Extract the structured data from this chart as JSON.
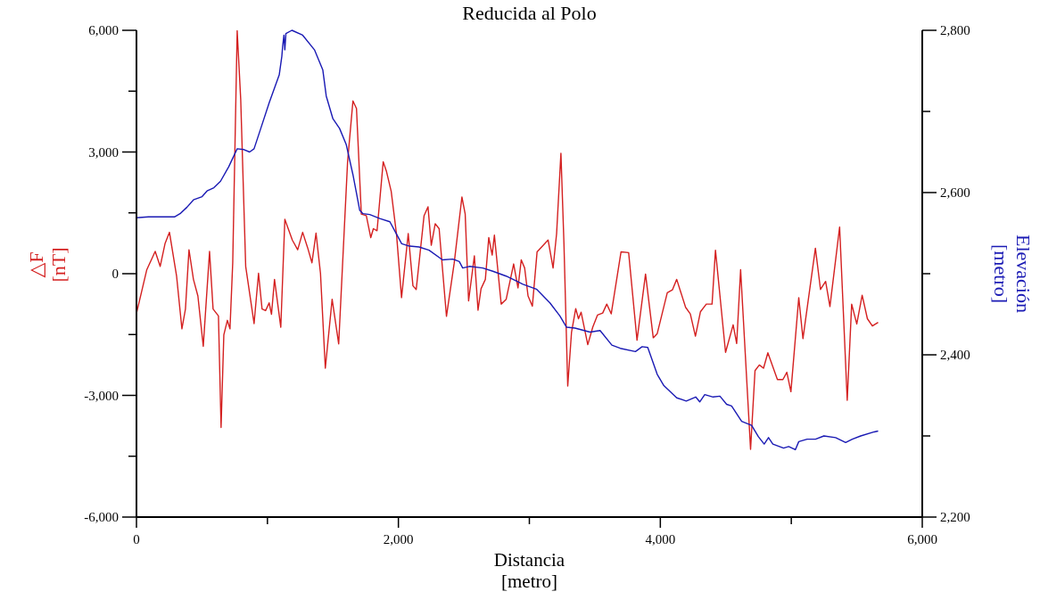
{
  "chart_data": {
    "type": "line",
    "title": "Reducida al Polo",
    "xlabel": "Distancia\n[metro]",
    "ylabel": "△F\n[nT]",
    "y2label": "Elevación\n[metro]",
    "xlim": [
      0,
      6000
    ],
    "xticks": [
      {
        "value": 0,
        "label": "0"
      },
      {
        "value": 1000,
        "label": null
      },
      {
        "value": 2000,
        "label": "2,000"
      },
      {
        "value": 3000,
        "label": null
      },
      {
        "value": 4000,
        "label": "4,000"
      },
      {
        "value": 5000,
        "label": null
      },
      {
        "value": 6000,
        "label": "6,000"
      }
    ],
    "ylim": [
      -6000,
      6000
    ],
    "yticks": [
      {
        "value": -6000,
        "label": "-6,000"
      },
      {
        "value": -4500,
        "label": null
      },
      {
        "value": -3000,
        "label": "-3,000"
      },
      {
        "value": -1500,
        "label": null
      },
      {
        "value": 0,
        "label": "0"
      },
      {
        "value": 1500,
        "label": null
      },
      {
        "value": 3000,
        "label": "3,000"
      },
      {
        "value": 4500,
        "label": null
      },
      {
        "value": 6000,
        "label": "6,000"
      }
    ],
    "y2lim": [
      2200,
      2800
    ],
    "y2ticks": [
      {
        "value": 2200,
        "label": "2,200"
      },
      {
        "value": 2300,
        "label": null
      },
      {
        "value": 2400,
        "label": "2,400"
      },
      {
        "value": 2500,
        "label": null
      },
      {
        "value": 2600,
        "label": "2,600"
      },
      {
        "value": 2700,
        "label": null
      },
      {
        "value": 2800,
        "label": "2,800"
      }
    ],
    "grid": false,
    "marker": "none",
    "line_style": "solid",
    "series": [
      {
        "color": "#d42020",
        "x": [
          0,
          79,
          143,
          181,
          218,
          252,
          306,
          347,
          374,
          401,
          435,
          469,
          510,
          558,
          585,
          626,
          646,
          667,
          694,
          714,
          735,
          769,
          796,
          834,
          898,
          932,
          959,
          986,
          1013,
          1031,
          1054,
          1102,
          1133,
          1190,
          1231,
          1269,
          1306,
          1340,
          1371,
          1405,
          1442,
          1494,
          1544,
          1612,
          1653,
          1680,
          1717,
          1755,
          1789,
          1809,
          1837,
          1884,
          1909,
          1945,
          1986,
          2024,
          2075,
          2111,
          2136,
          2196,
          2226,
          2251,
          2281,
          2311,
          2367,
          2426,
          2485,
          2510,
          2536,
          2580,
          2608,
          2631,
          2664,
          2690,
          2716,
          2733,
          2785,
          2823,
          2880,
          2913,
          2938,
          2964,
          2990,
          3023,
          3059,
          3143,
          3181,
          3208,
          3241,
          3264,
          3293,
          3322,
          3354,
          3375,
          3395,
          3446,
          3484,
          3520,
          3560,
          3591,
          3625,
          3700,
          3758,
          3822,
          3887,
          3946,
          3976,
          4053,
          4092,
          4125,
          4193,
          4229,
          4268,
          4306,
          4351,
          4395,
          4421,
          4498,
          4556,
          4583,
          4613,
          4689,
          4723,
          4756,
          4788,
          4821,
          4894,
          4936,
          4966,
          4997,
          5057,
          5089,
          5184,
          5223,
          5262,
          5295,
          5369,
          5427,
          5461,
          5500,
          5541,
          5581,
          5619,
          5663
        ],
        "values": [
          -980,
          100,
          550,
          180,
          740,
          1020,
          -50,
          -1360,
          -870,
          590,
          -140,
          -550,
          -1790,
          550,
          -870,
          -1040,
          -3790,
          -1510,
          -1150,
          -1360,
          270,
          5990,
          4300,
          180,
          -1230,
          10,
          -870,
          -910,
          -720,
          -1000,
          -140,
          -1320,
          1340,
          830,
          590,
          1020,
          650,
          270,
          1000,
          10,
          -2330,
          -630,
          -1730,
          2760,
          4260,
          4070,
          1470,
          1430,
          890,
          1110,
          1060,
          2760,
          2520,
          2030,
          960,
          -590,
          990,
          -300,
          -390,
          1430,
          1650,
          700,
          1230,
          1110,
          -1050,
          260,
          1890,
          1470,
          -670,
          440,
          -900,
          -370,
          -140,
          890,
          460,
          950,
          -750,
          -630,
          240,
          -350,
          340,
          140,
          -550,
          -800,
          540,
          830,
          140,
          990,
          2970,
          750,
          -2770,
          -1440,
          -860,
          -1110,
          -950,
          -1750,
          -1320,
          -1020,
          -970,
          -750,
          -990,
          540,
          520,
          -1640,
          -10,
          -1580,
          -1480,
          -470,
          -400,
          -140,
          -830,
          -990,
          -1540,
          -940,
          -750,
          -750,
          580,
          -1940,
          -1260,
          -1720,
          100,
          -4330,
          -2390,
          -2250,
          -2330,
          -1950,
          -2610,
          -2610,
          -2430,
          -2910,
          -590,
          -1600,
          630,
          -390,
          -190,
          -810,
          1150,
          -3120,
          -750,
          -1240,
          -530,
          -1110,
          -1290,
          -1200
        ]
      },
      {
        "color": "#1a1ab4",
        "axis": "y2",
        "x": [
          0,
          91,
          290,
          333,
          386,
          435,
          501,
          539,
          591,
          642,
          705,
          769,
          821,
          864,
          898,
          949,
          1014,
          1090,
          1110,
          1116,
          1126,
          1133,
          1141,
          1187,
          1269,
          1359,
          1423,
          1449,
          1500,
          1551,
          1602,
          1653,
          1705,
          1730,
          1781,
          1858,
          1935,
          2025,
          2084,
          2157,
          2234,
          2337,
          2414,
          2465,
          2491,
          2542,
          2644,
          2721,
          2823,
          2900,
          2951,
          3054,
          3157,
          3233,
          3284,
          3348,
          3463,
          3540,
          3630,
          3694,
          3810,
          3861,
          3904,
          3976,
          4027,
          4125,
          4198,
          4270,
          4301,
          4339,
          4403,
          4455,
          4506,
          4544,
          4621,
          4697,
          4749,
          4793,
          4826,
          4859,
          4941,
          4980,
          5031,
          5057,
          5121,
          5185,
          5249,
          5338,
          5415,
          5466,
          5530,
          5633,
          5663
        ],
        "values": [
          2569,
          2570,
          2570,
          2574,
          2582,
          2591,
          2595,
          2602,
          2606,
          2614,
          2632,
          2654,
          2653,
          2650,
          2654,
          2679,
          2711,
          2745,
          2768,
          2780,
          2794,
          2776,
          2796,
          2800,
          2794,
          2776,
          2751,
          2719,
          2691,
          2679,
          2659,
          2622,
          2578,
          2574,
          2573,
          2568,
          2564,
          2537,
          2534,
          2533,
          2529,
          2517,
          2518,
          2515,
          2507,
          2509,
          2507,
          2503,
          2497,
          2491,
          2487,
          2481,
          2464,
          2448,
          2434,
          2433,
          2428,
          2430,
          2412,
          2408,
          2404,
          2410,
          2409,
          2376,
          2362,
          2347,
          2343,
          2348,
          2342,
          2351,
          2348,
          2349,
          2339,
          2337,
          2318,
          2313,
          2299,
          2290,
          2298,
          2290,
          2285,
          2287,
          2283,
          2293,
          2296,
          2296,
          2300,
          2298,
          2292,
          2296,
          2300,
          2305,
          2306
        ]
      }
    ]
  }
}
